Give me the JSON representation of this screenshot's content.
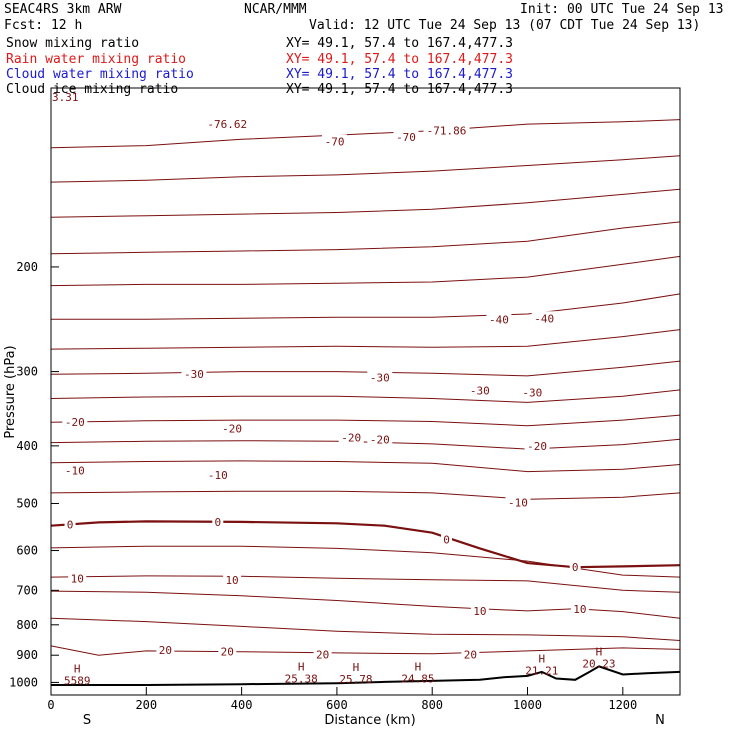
{
  "header": {
    "line1_left": "SEAC4RS  3km ARW",
    "line1_mid": "NCAR/MMM",
    "line1_right": "Init: 00 UTC Tue 24 Sep 13",
    "line2_left": "Fcst:   12 h",
    "line2_right": "Valid: 12 UTC Tue 24 Sep 13 (07 CDT Tue 24 Sep 13)",
    "legend": [
      {
        "label": "Snow mixing ratio",
        "xy": "XY=  49.1, 57.4 to 167.4,477.3",
        "color": "#000000"
      },
      {
        "label": "Rain water mixing ratio",
        "xy": "XY=  49.1, 57.4 to 167.4,477.3",
        "color": "#dd1a1a"
      },
      {
        "label": "Cloud water mixing ratio",
        "xy": "XY=  49.1, 57.4 to 167.4,477.3",
        "color": "#1a1ad0"
      },
      {
        "label": "Cloud ice mixing ratio",
        "xy": "XY=  49.1, 57.4 to 167.4,477.3",
        "color": "#000000"
      }
    ]
  },
  "chart_data": {
    "type": "line",
    "title": "",
    "xlabel": "Distance (km)",
    "ylabel": "Pressure (hPa)",
    "xlim": [
      0,
      1320
    ],
    "ylim": [
      1050,
      100
    ],
    "y_scale": "log",
    "x_ticks": [
      0,
      200,
      400,
      600,
      800,
      1000,
      1200
    ],
    "y_ticks": [
      1000,
      900,
      800,
      700,
      600,
      500,
      400,
      300,
      200,
      100
    ],
    "y_tick_labels": [
      "1000",
      "900",
      "800",
      "700",
      "600",
      "500",
      "400",
      "300",
      "200",
      ""
    ],
    "end_labels": {
      "left": "S",
      "right": "N"
    },
    "contour_color": "#7a1010",
    "freezing_level_color": "#7a1010",
    "terrain_color": "#000000",
    "isotherms": [
      {
        "name": "-70",
        "x": [
          0,
          200,
          400,
          600,
          800,
          1000,
          1200,
          1320
        ],
        "p": [
          126,
          125,
          122,
          120,
          118,
          115,
          114,
          113
        ]
      },
      {
        "name": "-60",
        "x": [
          0,
          200,
          400,
          600,
          800,
          1000,
          1200,
          1320
        ],
        "p": [
          144,
          143,
          141,
          140,
          138,
          135,
          132,
          130
        ]
      },
      {
        "name": "-55",
        "x": [
          0,
          200,
          400,
          600,
          800,
          1000,
          1200,
          1320
        ],
        "p": [
          165,
          164,
          163,
          162,
          160,
          156,
          151,
          148
        ]
      },
      {
        "name": "-50",
        "x": [
          0,
          200,
          400,
          600,
          800,
          1000,
          1200,
          1320
        ],
        "p": [
          190,
          189,
          188,
          187,
          185,
          181,
          172,
          168
        ]
      },
      {
        "name": "-45",
        "x": [
          0,
          200,
          400,
          600,
          800,
          1000,
          1200,
          1320
        ],
        "p": [
          215,
          214,
          214,
          213,
          212,
          208,
          198,
          192
        ]
      },
      {
        "name": "-40",
        "x": [
          0,
          200,
          400,
          600,
          800,
          1000,
          1200,
          1320
        ],
        "p": [
          245,
          245,
          244,
          243,
          243,
          240,
          230,
          222
        ]
      },
      {
        "name": "-35",
        "x": [
          0,
          200,
          400,
          600,
          800,
          1000,
          1200,
          1320
        ],
        "p": [
          275,
          274,
          273,
          272,
          273,
          272,
          262,
          255
        ]
      },
      {
        "name": "-30",
        "x": [
          0,
          200,
          400,
          600,
          800,
          1000,
          1200,
          1320
        ],
        "p": [
          303,
          302,
          300,
          300,
          302,
          305,
          295,
          288
        ]
      },
      {
        "name": "-25",
        "x": [
          0,
          200,
          400,
          600,
          800,
          1000,
          1200,
          1320
        ],
        "p": [
          333,
          331,
          330,
          330,
          333,
          338,
          330,
          322
        ]
      },
      {
        "name": "-20",
        "x": [
          0,
          200,
          400,
          600,
          800,
          1000,
          1200,
          1320
        ],
        "p": [
          365,
          363,
          362,
          362,
          364,
          370,
          362,
          355
        ]
      },
      {
        "name": "-15",
        "x": [
          0,
          200,
          400,
          600,
          800,
          1000,
          1200,
          1320
        ],
        "p": [
          395,
          393,
          392,
          393,
          397,
          405,
          398,
          390
        ]
      },
      {
        "name": "-10",
        "x": [
          0,
          200,
          400,
          600,
          800,
          1000,
          1200,
          1320
        ],
        "p": [
          427,
          425,
          424,
          425,
          428,
          442,
          438,
          430
        ]
      },
      {
        "name": "-5",
        "x": [
          0,
          200,
          400,
          600,
          800,
          1000,
          1200,
          1320
        ],
        "p": [
          480,
          478,
          477,
          477,
          480,
          492,
          488,
          480
        ]
      },
      {
        "name": "0",
        "x": [
          0,
          100,
          200,
          400,
          600,
          700,
          800,
          900,
          1000,
          1100,
          1200,
          1320
        ],
        "p": [
          545,
          538,
          536,
          537,
          540,
          545,
          560,
          595,
          630,
          640,
          638,
          635
        ]
      },
      {
        "name": "5",
        "x": [
          0,
          200,
          400,
          600,
          800,
          1000,
          1200,
          1320
        ],
        "p": [
          594,
          590,
          590,
          595,
          605,
          625,
          660,
          665
        ]
      },
      {
        "name": "10",
        "x": [
          0,
          200,
          400,
          600,
          800,
          1000,
          1200,
          1320
        ],
        "p": [
          665,
          662,
          663,
          668,
          672,
          675,
          700,
          705
        ]
      },
      {
        "name": "10b",
        "x": [
          0,
          200,
          400,
          600,
          800,
          900,
          1000,
          1100,
          1200,
          1320
        ],
        "p": [
          702,
          705,
          715,
          728,
          745,
          752,
          758,
          752,
          760,
          780
        ]
      },
      {
        "name": "15",
        "x": [
          0,
          200,
          400,
          600,
          800,
          1000,
          1200,
          1320
        ],
        "p": [
          780,
          790,
          805,
          820,
          830,
          832,
          838,
          850
        ]
      },
      {
        "name": "20",
        "x": [
          0,
          100,
          200,
          400,
          600,
          800,
          1000,
          1100,
          1200,
          1320
        ],
        "p": [
          868,
          900,
          885,
          888,
          892,
          895,
          885,
          880,
          875,
          880
        ]
      }
    ],
    "terrain": {
      "x": [
        0,
        200,
        400,
        500,
        600,
        700,
        800,
        900,
        950,
        1000,
        1030,
        1060,
        1100,
        1130,
        1150,
        1200,
        1250,
        1320
      ],
      "p": [
        1010,
        1010,
        1007,
        1005,
        1003,
        998,
        994,
        990,
        980,
        975,
        960,
        985,
        990,
        960,
        940,
        970,
        965,
        960
      ]
    },
    "contour_labels": [
      {
        "text": "-76.62",
        "x": 370,
        "p": 115
      },
      {
        "text": "-70",
        "x": 595,
        "p": 123
      },
      {
        "text": "-70",
        "x": 745,
        "p": 121
      },
      {
        "text": "-71.86",
        "x": 830,
        "p": 118
      },
      {
        "text": "-40",
        "x": 940,
        "p": 245
      },
      {
        "text": "-40",
        "x": 1035,
        "p": 244
      },
      {
        "text": "-30",
        "x": 300,
        "p": 303
      },
      {
        "text": "-30",
        "x": 690,
        "p": 307
      },
      {
        "text": "-30",
        "x": 900,
        "p": 323
      },
      {
        "text": "-30",
        "x": 1010,
        "p": 325
      },
      {
        "text": "-20",
        "x": 50,
        "p": 365
      },
      {
        "text": "-20",
        "x": 380,
        "p": 374
      },
      {
        "text": "-20",
        "x": 630,
        "p": 387
      },
      {
        "text": "-20",
        "x": 690,
        "p": 390
      },
      {
        "text": "-20",
        "x": 1020,
        "p": 400
      },
      {
        "text": "-10",
        "x": 50,
        "p": 440
      },
      {
        "text": "-10",
        "x": 350,
        "p": 448
      },
      {
        "text": "-10",
        "x": 980,
        "p": 498
      },
      {
        "text": "0",
        "x": 40,
        "p": 542
      },
      {
        "text": "0",
        "x": 350,
        "p": 537
      },
      {
        "text": "0",
        "x": 830,
        "p": 575
      },
      {
        "text": "0",
        "x": 1100,
        "p": 640
      },
      {
        "text": "10",
        "x": 55,
        "p": 668
      },
      {
        "text": "10",
        "x": 380,
        "p": 672
      },
      {
        "text": "10",
        "x": 900,
        "p": 758
      },
      {
        "text": "10",
        "x": 1110,
        "p": 752
      },
      {
        "text": "20",
        "x": 240,
        "p": 882
      },
      {
        "text": "20",
        "x": 370,
        "p": 888
      },
      {
        "text": "20",
        "x": 570,
        "p": 897
      },
      {
        "text": "20",
        "x": 880,
        "p": 897
      }
    ],
    "high_marks": [
      {
        "text": "H",
        "value": "5589",
        "x": 55,
        "p": 993,
        "color": "#1a1ad0"
      },
      {
        "text": "H",
        "value": "25.38",
        "x": 525,
        "p": 985,
        "color": "#7a1010"
      },
      {
        "text": "H",
        "value": "25.78",
        "x": 640,
        "p": 987,
        "color": "#7a1010"
      },
      {
        "text": "H",
        "value": "24.85",
        "x": 770,
        "p": 985,
        "color": "#7a1010"
      },
      {
        "text": "H",
        "value": "21.21",
        "x": 1030,
        "p": 955,
        "color": "#7a1010"
      },
      {
        "text": "H",
        "value": "20.23",
        "x": 1150,
        "p": 930,
        "color": "#7a1010"
      }
    ],
    "top_left_label": "3.31"
  }
}
